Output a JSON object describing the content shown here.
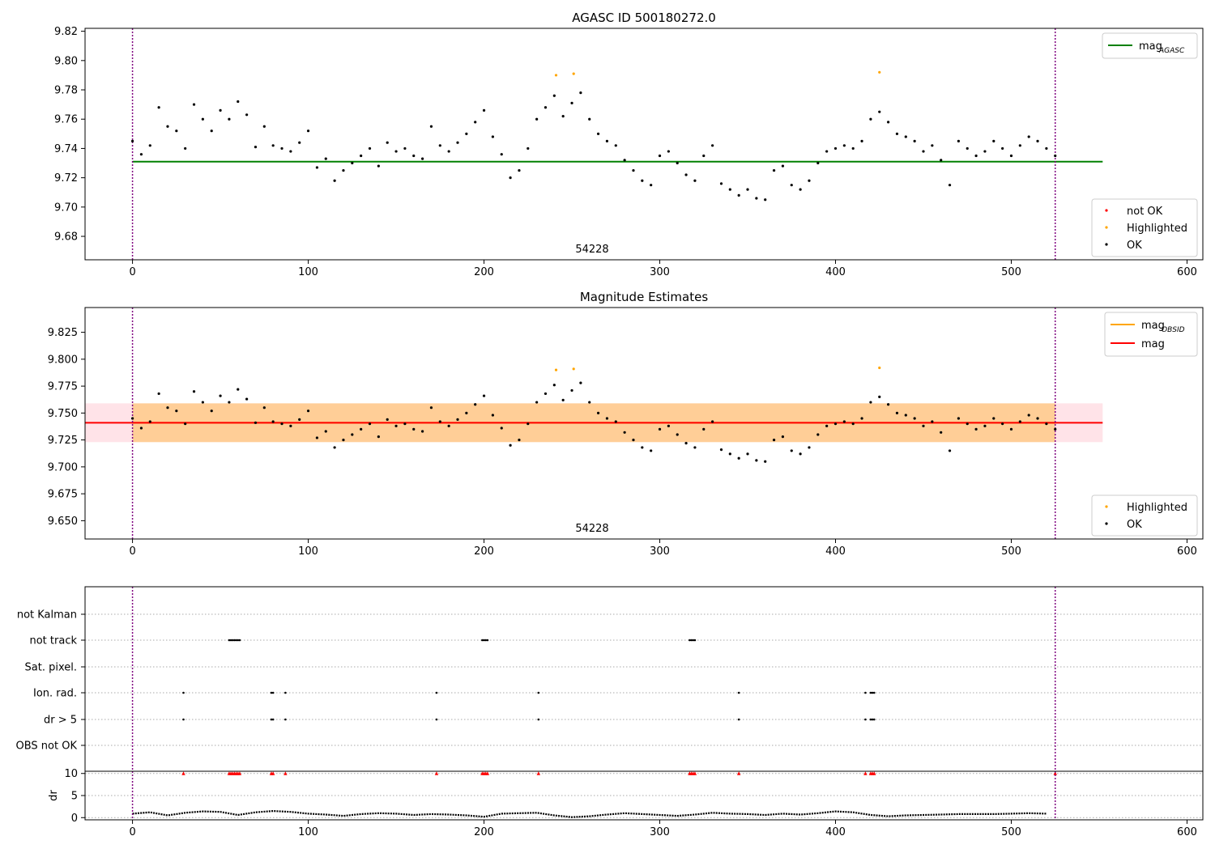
{
  "chart_data": [
    {
      "type": "scatter",
      "title": "AGASC ID 500180272.0",
      "xlim": [
        -27,
        609
      ],
      "ylim": [
        9.664,
        9.822
      ],
      "xticks": [
        0,
        100,
        200,
        300,
        400,
        500,
        600
      ],
      "yticks": [
        9.68,
        9.7,
        9.72,
        9.74,
        9.76,
        9.78,
        9.8,
        9.82
      ],
      "grid": false,
      "obs_boundaries": [
        0,
        525
      ],
      "obs_label": {
        "x": 262,
        "text": "54228"
      },
      "lines": [
        {
          "name": "mag_AGASC",
          "y": 9.731,
          "x": [
            0,
            552
          ],
          "color": "#008000"
        }
      ],
      "line_legend": {
        "position": "upper right",
        "entries": [
          {
            "name": "mag",
            "sub": "AGASC",
            "color": "#008000"
          }
        ]
      },
      "series": [
        {
          "name": "not OK",
          "color": "#ff0000",
          "values": []
        },
        {
          "name": "Highlighted",
          "color": "#ffa500",
          "x": [
            241,
            251,
            425
          ],
          "values": [
            9.79,
            9.791,
            9.792
          ]
        },
        {
          "name": "OK",
          "color": "#000000",
          "x": [
            0,
            5,
            10,
            15,
            20,
            25,
            30,
            35,
            40,
            45,
            50,
            55,
            60,
            65,
            70,
            75,
            80,
            85,
            90,
            95,
            100,
            105,
            110,
            115,
            120,
            125,
            130,
            135,
            140,
            145,
            150,
            155,
            160,
            165,
            170,
            175,
            180,
            185,
            190,
            195,
            200,
            205,
            210,
            215,
            220,
            225,
            230,
            235,
            240,
            245,
            250,
            255,
            260,
            265,
            270,
            275,
            280,
            285,
            290,
            295,
            300,
            305,
            310,
            315,
            320,
            325,
            330,
            335,
            340,
            345,
            350,
            355,
            360,
            365,
            370,
            375,
            380,
            385,
            390,
            395,
            400,
            405,
            410,
            415,
            420,
            425,
            430,
            435,
            440,
            445,
            450,
            455,
            460,
            465,
            470,
            475,
            480,
            485,
            490,
            495,
            500,
            505,
            510,
            515,
            520,
            525
          ],
          "values": [
            9.745,
            9.736,
            9.742,
            9.768,
            9.755,
            9.752,
            9.74,
            9.77,
            9.76,
            9.752,
            9.766,
            9.76,
            9.772,
            9.763,
            9.741,
            9.755,
            9.742,
            9.74,
            9.738,
            9.744,
            9.752,
            9.727,
            9.733,
            9.718,
            9.725,
            9.73,
            9.735,
            9.74,
            9.728,
            9.744,
            9.738,
            9.74,
            9.735,
            9.733,
            9.755,
            9.742,
            9.738,
            9.744,
            9.75,
            9.758,
            9.766,
            9.748,
            9.736,
            9.72,
            9.725,
            9.74,
            9.76,
            9.768,
            9.776,
            9.762,
            9.771,
            9.778,
            9.76,
            9.75,
            9.745,
            9.742,
            9.732,
            9.725,
            9.718,
            9.715,
            9.735,
            9.738,
            9.73,
            9.722,
            9.718,
            9.735,
            9.742,
            9.716,
            9.712,
            9.708,
            9.712,
            9.706,
            9.705,
            9.725,
            9.728,
            9.715,
            9.712,
            9.718,
            9.73,
            9.738,
            9.74,
            9.742,
            9.74,
            9.745,
            9.76,
            9.765,
            9.758,
            9.75,
            9.748,
            9.745,
            9.738,
            9.742,
            9.732,
            9.715,
            9.745,
            9.74,
            9.735,
            9.738,
            9.745,
            9.74,
            9.735,
            9.742,
            9.748,
            9.745,
            9.74,
            9.735
          ]
        }
      ],
      "point_legend": {
        "position": "lower right",
        "entries": [
          "not OK",
          "Highlighted",
          "OK"
        ]
      }
    },
    {
      "type": "scatter",
      "title": "Magnitude Estimates",
      "xlim": [
        -27,
        609
      ],
      "ylim": [
        9.633,
        9.848
      ],
      "xticks": [
        0,
        100,
        200,
        300,
        400,
        500,
        600
      ],
      "yticks": [
        9.65,
        9.675,
        9.7,
        9.725,
        9.75,
        9.775,
        9.8,
        9.825
      ],
      "grid": false,
      "obs_boundaries": [
        0,
        525
      ],
      "obs_label": {
        "x": 262,
        "text": "54228"
      },
      "bands": [
        {
          "x": [
            -27,
            552
          ],
          "y": [
            9.723,
            9.759
          ],
          "color": "#ffc0cb"
        },
        {
          "x": [
            0,
            525
          ],
          "y": [
            9.723,
            9.759
          ],
          "color": "#ffa500"
        }
      ],
      "lines": [
        {
          "name": "mag_OBSID",
          "y": 9.741,
          "x": [
            0,
            525
          ],
          "color": "#ffa500"
        },
        {
          "name": "mag",
          "y": 9.741,
          "x": [
            -27,
            552
          ],
          "color": "#ff0000"
        }
      ],
      "line_legend": {
        "position": "upper right",
        "entries": [
          {
            "name": "mag",
            "sub": "OBSID",
            "color": "#ffa500"
          },
          {
            "name": "mag",
            "sub": "",
            "color": "#ff0000"
          }
        ]
      },
      "series": [
        {
          "name": "Highlighted",
          "color": "#ffa500",
          "x": [
            241,
            251,
            425
          ],
          "values": [
            9.79,
            9.791,
            9.792
          ]
        },
        {
          "name": "OK",
          "color": "#000000",
          "x": [
            0,
            5,
            10,
            15,
            20,
            25,
            30,
            35,
            40,
            45,
            50,
            55,
            60,
            65,
            70,
            75,
            80,
            85,
            90,
            95,
            100,
            105,
            110,
            115,
            120,
            125,
            130,
            135,
            140,
            145,
            150,
            155,
            160,
            165,
            170,
            175,
            180,
            185,
            190,
            195,
            200,
            205,
            210,
            215,
            220,
            225,
            230,
            235,
            240,
            245,
            250,
            255,
            260,
            265,
            270,
            275,
            280,
            285,
            290,
            295,
            300,
            305,
            310,
            315,
            320,
            325,
            330,
            335,
            340,
            345,
            350,
            355,
            360,
            365,
            370,
            375,
            380,
            385,
            390,
            395,
            400,
            405,
            410,
            415,
            420,
            425,
            430,
            435,
            440,
            445,
            450,
            455,
            460,
            465,
            470,
            475,
            480,
            485,
            490,
            495,
            500,
            505,
            510,
            515,
            520,
            525
          ],
          "values": [
            9.745,
            9.736,
            9.742,
            9.768,
            9.755,
            9.752,
            9.74,
            9.77,
            9.76,
            9.752,
            9.766,
            9.76,
            9.772,
            9.763,
            9.741,
            9.755,
            9.742,
            9.74,
            9.738,
            9.744,
            9.752,
            9.727,
            9.733,
            9.718,
            9.725,
            9.73,
            9.735,
            9.74,
            9.728,
            9.744,
            9.738,
            9.74,
            9.735,
            9.733,
            9.755,
            9.742,
            9.738,
            9.744,
            9.75,
            9.758,
            9.766,
            9.748,
            9.736,
            9.72,
            9.725,
            9.74,
            9.76,
            9.768,
            9.776,
            9.762,
            9.771,
            9.778,
            9.76,
            9.75,
            9.745,
            9.742,
            9.732,
            9.725,
            9.718,
            9.715,
            9.735,
            9.738,
            9.73,
            9.722,
            9.718,
            9.735,
            9.742,
            9.716,
            9.712,
            9.708,
            9.712,
            9.706,
            9.705,
            9.725,
            9.728,
            9.715,
            9.712,
            9.718,
            9.73,
            9.738,
            9.74,
            9.742,
            9.74,
            9.745,
            9.76,
            9.765,
            9.758,
            9.75,
            9.748,
            9.745,
            9.738,
            9.742,
            9.732,
            9.715,
            9.745,
            9.74,
            9.735,
            9.738,
            9.745,
            9.74,
            9.735,
            9.742,
            9.748,
            9.745,
            9.74,
            9.735
          ]
        }
      ],
      "point_legend": {
        "position": "lower right",
        "entries": [
          "Highlighted",
          "OK"
        ]
      }
    },
    {
      "type": "scatter",
      "title": "",
      "xlim": [
        -27,
        609
      ],
      "xticks": [
        0,
        100,
        200,
        300,
        400,
        500,
        600
      ],
      "obs_boundaries": [
        0,
        525
      ],
      "flag_categories": [
        "not Kalman",
        "not track",
        "Sat. pixel.",
        "Ion. rad.",
        "dr > 5",
        "OBS not OK"
      ],
      "flags": {
        "not Kalman": [],
        "not track": [
          55,
          56,
          57,
          58,
          59,
          60,
          61,
          199,
          200,
          201,
          202,
          317,
          318,
          319,
          320
        ],
        "Sat. pixel.": [],
        "Ion. rad.": [
          29,
          79,
          80,
          87,
          173,
          231,
          345,
          417,
          420,
          421,
          422
        ],
        "dr > 5": [
          29,
          79,
          80,
          87,
          173,
          231,
          345,
          417,
          420,
          421,
          422
        ],
        "OBS not OK": []
      },
      "dr": {
        "ylabel": "dr",
        "ylim": [
          -0.5,
          10.5
        ],
        "yticks": [
          0,
          5,
          10
        ],
        "clip_value": 10,
        "clip_color": "#ff0000",
        "clip_x": [
          29,
          55,
          56,
          57,
          58,
          59,
          60,
          61,
          79,
          80,
          87,
          173,
          199,
          200,
          201,
          202,
          231,
          317,
          318,
          319,
          320,
          345,
          417,
          420,
          421,
          422,
          525
        ],
        "x": [
          0,
          10,
          20,
          30,
          40,
          50,
          60,
          70,
          80,
          90,
          100,
          110,
          120,
          130,
          140,
          150,
          160,
          170,
          180,
          190,
          200,
          210,
          220,
          230,
          240,
          250,
          260,
          270,
          280,
          290,
          300,
          310,
          320,
          330,
          340,
          350,
          360,
          370,
          380,
          390,
          400,
          410,
          420,
          430,
          440,
          450,
          460,
          470,
          480,
          490,
          500,
          510,
          520
        ],
        "values": [
          0.9,
          1.2,
          0.5,
          1.1,
          1.4,
          1.3,
          0.6,
          1.2,
          1.5,
          1.3,
          0.9,
          0.7,
          0.4,
          0.8,
          1.0,
          0.9,
          0.6,
          0.8,
          0.7,
          0.5,
          0.2,
          0.9,
          1.0,
          1.1,
          0.5,
          0.1,
          0.3,
          0.7,
          1.0,
          0.8,
          0.6,
          0.4,
          0.7,
          1.1,
          0.9,
          0.8,
          0.6,
          0.9,
          0.7,
          1.0,
          1.4,
          1.2,
          0.6,
          0.3,
          0.5,
          0.6,
          0.7,
          0.8,
          0.8,
          0.8,
          0.9,
          1.0,
          0.9
        ]
      }
    }
  ]
}
